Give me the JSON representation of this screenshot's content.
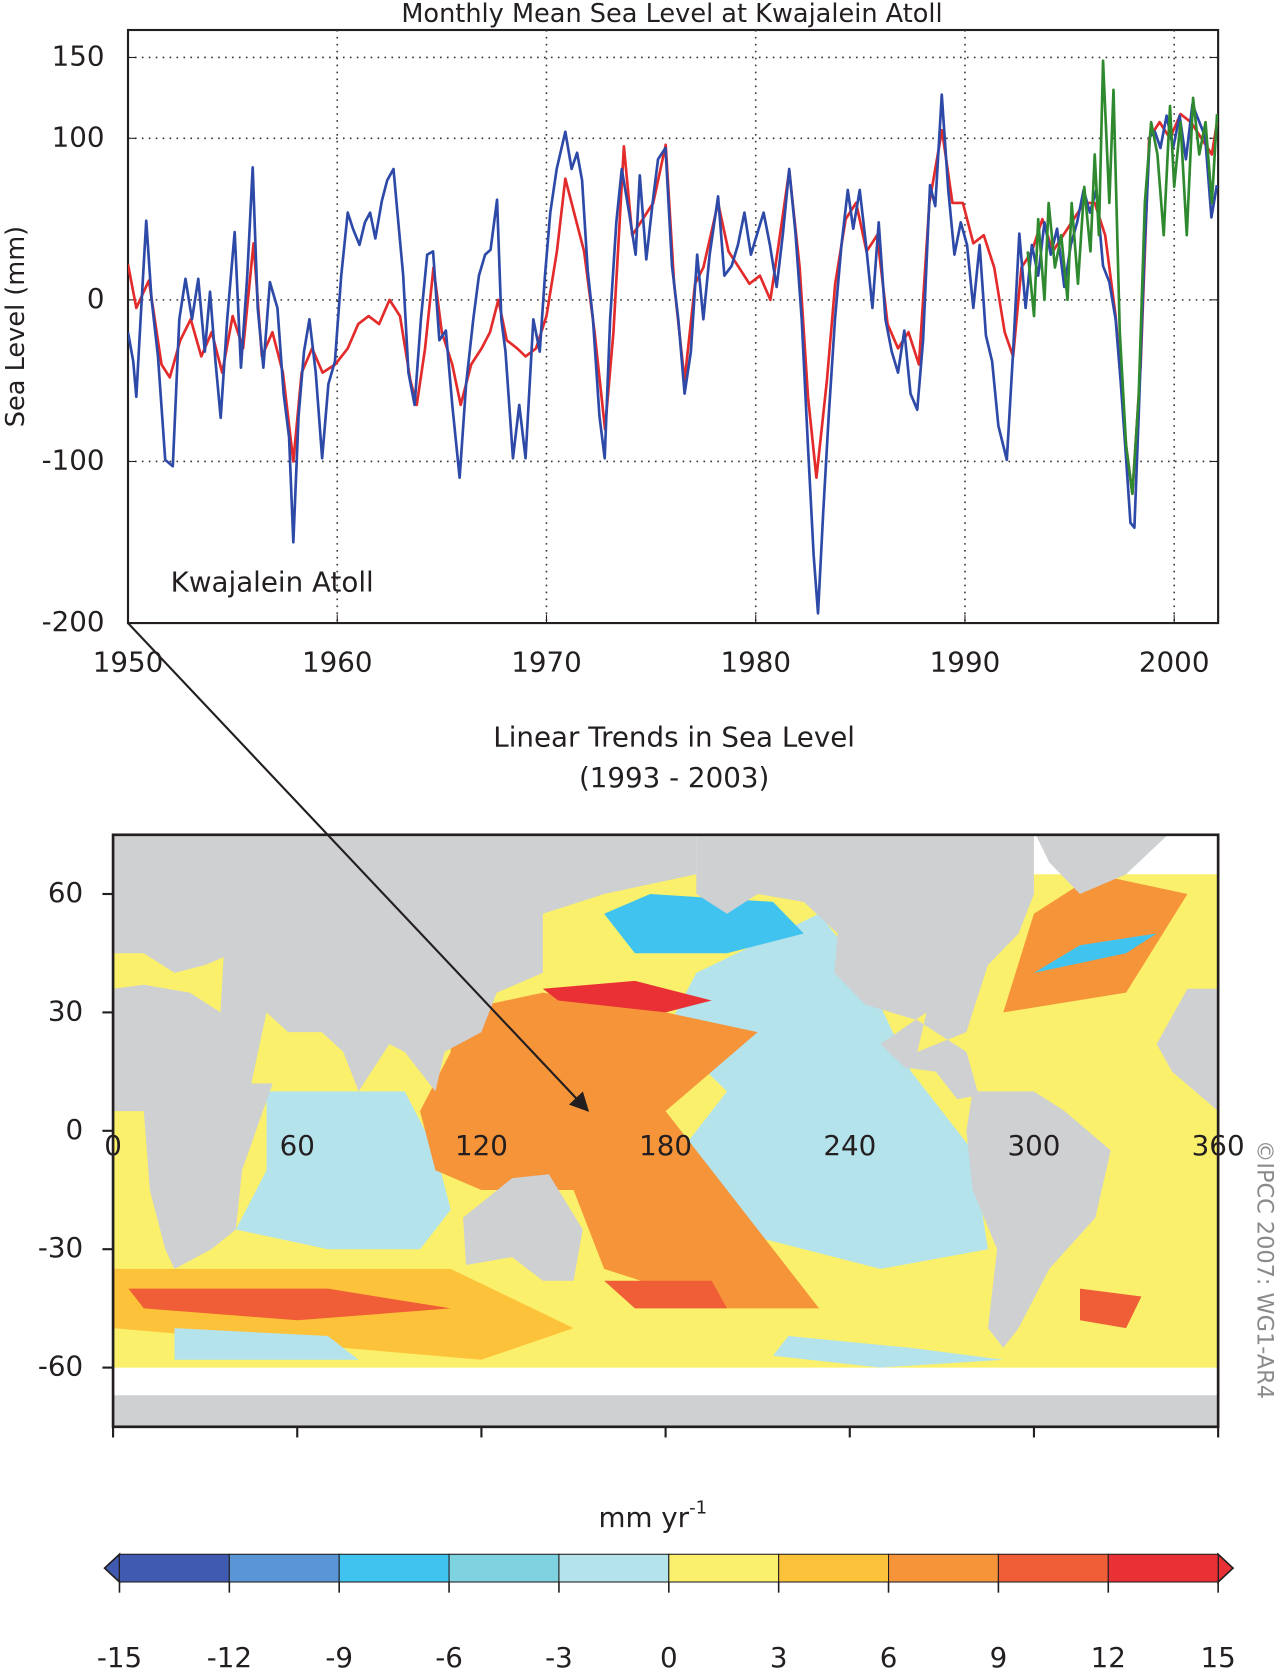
{
  "chart_data": [
    {
      "type": "line",
      "title": "Monthly Mean Sea Level at Kwajalein Atoll",
      "y_label": "Sea Level (mm)",
      "annotation": "Kwajalein Atoll",
      "xlim": [
        1950,
        2002.1
      ],
      "xticks": [
        1950,
        1960,
        1970,
        1980,
        1990,
        2000
      ],
      "ylim": [
        -200,
        167
      ],
      "yticks": [
        -200,
        -100,
        0,
        100,
        150
      ],
      "grid": true,
      "series": [
        {
          "color": "#e32b2b",
          "x": [
            1950.0,
            1950.4,
            1951.0,
            1951.6,
            1952.0,
            1952.5,
            1953.0,
            1953.5,
            1954.0,
            1954.5,
            1955.0,
            1955.5,
            1956.0,
            1956.4,
            1956.9,
            1957.4,
            1957.9,
            1958.3,
            1958.8,
            1959.3,
            1959.9,
            1960.5,
            1961.0,
            1961.5,
            1962.0,
            1962.5,
            1963.0,
            1963.5,
            1963.8,
            1964.2,
            1964.6,
            1965.0,
            1965.5,
            1965.9,
            1966.4,
            1966.9,
            1967.3,
            1967.7,
            1968.1,
            1968.6,
            1969.0,
            1969.5,
            1970.0,
            1970.5,
            1970.9,
            1971.3,
            1971.8,
            1972.3,
            1972.8,
            1973.2,
            1973.7,
            1974.1,
            1974.6,
            1975.1,
            1975.7,
            1976.1,
            1976.6,
            1977.1,
            1977.5,
            1978.2,
            1978.7,
            1979.2,
            1979.7,
            1980.2,
            1980.7,
            1981.1,
            1981.6,
            1982.1,
            1982.5,
            1982.9,
            1983.4,
            1983.8,
            1984.3,
            1984.8,
            1985.3,
            1985.8,
            1986.3,
            1986.8,
            1987.3,
            1987.8,
            1988.3,
            1988.9,
            1989.4,
            1989.9,
            1990.4,
            1990.9,
            1991.4,
            1991.9,
            1992.3,
            1992.7,
            1993.2,
            1993.7,
            1994.2,
            1994.7,
            1995.2,
            1995.7,
            1996.2,
            1996.7,
            1997.2,
            1997.7,
            1998.0,
            1998.4,
            1998.8,
            1999.3,
            1999.8,
            2000.3,
            2000.8,
            2001.3,
            2001.8,
            2002.05
          ],
          "values": [
            22,
            -5,
            12,
            -40,
            -48,
            -25,
            -12,
            -35,
            -20,
            -45,
            -10,
            -30,
            35,
            -35,
            -20,
            -45,
            -100,
            -45,
            -30,
            -45,
            -40,
            -30,
            -15,
            -10,
            -15,
            0,
            -10,
            -50,
            -65,
            -30,
            20,
            -20,
            -40,
            -65,
            -40,
            -30,
            -20,
            0,
            -25,
            -30,
            -35,
            -30,
            -10,
            30,
            75,
            55,
            30,
            -20,
            -80,
            -20,
            95,
            40,
            50,
            60,
            96,
            10,
            -50,
            10,
            20,
            60,
            30,
            20,
            10,
            15,
            0,
            35,
            80,
            20,
            -60,
            -110,
            -50,
            10,
            50,
            60,
            30,
            40,
            -15,
            -30,
            -20,
            -40,
            60,
            105,
            60,
            60,
            35,
            40,
            20,
            -20,
            -35,
            20,
            30,
            50,
            30,
            40,
            50,
            60,
            60,
            40,
            -10,
            -90,
            -120,
            -40,
            100,
            110,
            100,
            115,
            110,
            100,
            90,
            110
          ]
        },
        {
          "color": "#2e4aa8",
          "x": [
            1950.0,
            1950.25,
            1950.4,
            1950.6,
            1950.87,
            1951.12,
            1951.43,
            1951.78,
            1952.14,
            1952.45,
            1952.75,
            1953.06,
            1953.36,
            1953.67,
            1953.92,
            1954.18,
            1954.43,
            1954.74,
            1955.1,
            1955.4,
            1955.7,
            1955.96,
            1956.2,
            1956.47,
            1956.78,
            1957.14,
            1957.44,
            1957.7,
            1957.9,
            1958.15,
            1958.41,
            1958.67,
            1958.97,
            1959.28,
            1959.58,
            1959.89,
            1960.19,
            1960.5,
            1960.75,
            1961.06,
            1961.32,
            1961.57,
            1961.82,
            1962.13,
            1962.39,
            1962.69,
            1962.9,
            1963.15,
            1963.4,
            1963.7,
            1964.0,
            1964.3,
            1964.58,
            1964.88,
            1965.19,
            1965.5,
            1965.85,
            1966.16,
            1966.5,
            1966.77,
            1967.07,
            1967.33,
            1967.64,
            1967.84,
            1968.04,
            1968.4,
            1968.7,
            1969.0,
            1969.37,
            1969.68,
            1969.93,
            1970.18,
            1970.49,
            1970.9,
            1971.2,
            1971.46,
            1971.7,
            1971.97,
            1972.22,
            1972.53,
            1972.78,
            1973.04,
            1973.34,
            1973.6,
            1973.95,
            1974.26,
            1974.46,
            1974.77,
            1975.08,
            1975.33,
            1975.69,
            1976.0,
            1976.3,
            1976.6,
            1976.9,
            1977.2,
            1977.5,
            1977.8,
            1978.2,
            1978.5,
            1978.85,
            1979.15,
            1979.46,
            1979.77,
            1980.07,
            1980.38,
            1980.68,
            1981.0,
            1981.3,
            1981.6,
            1981.9,
            1982.2,
            1982.5,
            1982.77,
            1982.98,
            1983.23,
            1983.49,
            1983.79,
            1984.1,
            1984.4,
            1984.66,
            1984.97,
            1985.27,
            1985.58,
            1985.88,
            1986.2,
            1986.5,
            1986.8,
            1987.1,
            1987.4,
            1987.72,
            1988.0,
            1988.33,
            1988.58,
            1988.89,
            1989.2,
            1989.5,
            1989.8,
            1990.1,
            1990.4,
            1990.7,
            1991.0,
            1991.3,
            1991.6,
            1992.0,
            1992.3,
            1992.6,
            1992.9,
            1993.2,
            1993.5,
            1993.8,
            1994.1,
            1994.4,
            1994.75,
            1995.06,
            1995.36,
            1995.67,
            1995.97,
            1996.28,
            1996.6,
            1996.9,
            1997.2,
            1997.45,
            1997.7,
            1997.91,
            1998.1,
            1998.3,
            1998.57,
            1998.83,
            1999.08,
            1999.34,
            1999.64,
            1999.95,
            2000.26,
            2000.56,
            2000.87,
            2001.17,
            2001.48,
            2001.78,
            2002.04
          ],
          "values": [
            -20,
            -38,
            -60,
            -12,
            49,
            1,
            -35,
            -99,
            -103,
            -12,
            13,
            -12,
            13,
            -32,
            5,
            -38,
            -73,
            -12,
            42,
            -42,
            15,
            82,
            -5,
            -42,
            11,
            -5,
            -58,
            -85,
            -150,
            -72,
            -32,
            -12,
            -45,
            -98,
            -52,
            -38,
            15,
            54,
            44,
            34,
            48,
            54,
            38,
            61,
            74,
            81,
            51,
            15,
            -45,
            -65,
            -12,
            28,
            30,
            -25,
            -19,
            -65,
            -110,
            -52,
            -12,
            15,
            28,
            31,
            62,
            -12,
            -32,
            -98,
            -65,
            -98,
            -12,
            -32,
            15,
            54,
            81,
            104,
            81,
            91,
            74,
            18,
            -12,
            -72,
            -98,
            -12,
            48,
            81,
            54,
            28,
            77,
            25,
            61,
            87,
            94,
            21,
            -12,
            -58,
            -32,
            28,
            -12,
            28,
            64,
            15,
            21,
            34,
            54,
            28,
            41,
            54,
            34,
            8,
            41,
            81,
            41,
            -12,
            -91,
            -158,
            -194,
            -131,
            -72,
            -12,
            34,
            68,
            44,
            68,
            34,
            -5,
            48,
            -12,
            -32,
            -45,
            -19,
            -58,
            -68,
            -25,
            71,
            58,
            127,
            68,
            28,
            48,
            34,
            -5,
            34,
            -22,
            -38,
            -78,
            -99,
            -32,
            41,
            -5,
            34,
            15,
            48,
            28,
            44,
            8,
            34,
            48,
            68,
            54,
            68,
            21,
            11,
            -12,
            -52,
            -98,
            -138,
            -141,
            -72,
            28,
            101,
            104,
            94,
            114,
            94,
            114,
            87,
            121,
            111,
            101,
            51,
            71
          ]
        },
        {
          "color": "#2f8a2f",
          "x": [
            1993.0,
            1993.3,
            1993.5,
            1993.8,
            1994.0,
            1994.3,
            1994.6,
            1994.9,
            1995.1,
            1995.4,
            1995.7,
            1996.0,
            1996.2,
            1996.4,
            1996.6,
            1996.9,
            1997.1,
            1997.4,
            1997.7,
            1998.0,
            1998.3,
            1998.6,
            1998.9,
            1999.2,
            1999.5,
            1999.8,
            2000.0,
            2000.3,
            2000.6,
            2000.9,
            2001.2,
            2001.5,
            2001.8,
            2002.05
          ],
          "values": [
            30,
            -10,
            50,
            0,
            60,
            20,
            40,
            0,
            60,
            10,
            70,
            30,
            90,
            40,
            148,
            60,
            130,
            -20,
            -90,
            -120,
            -60,
            60,
            110,
            90,
            40,
            120,
            70,
            110,
            40,
            125,
            90,
            110,
            60,
            115
          ]
        }
      ]
    },
    {
      "type": "map",
      "title": "Linear Trends in Sea Level",
      "subtitle": "(1993 - 2003)",
      "xlim": [
        0,
        360
      ],
      "xticks": [
        0,
        60,
        120,
        180,
        240,
        300,
        360
      ],
      "ylim": [
        -75,
        75
      ],
      "yticks": [
        -60,
        -30,
        0,
        30,
        60
      ],
      "colorbar": {
        "label": "mm yr",
        "label_superscript": "-1",
        "ticks": [
          -15,
          -12,
          -9,
          -6,
          -3,
          0,
          3,
          6,
          9,
          12,
          15
        ],
        "colors": [
          "#3f5ab0",
          "#5a95d6",
          "#40c3ef",
          "#7fd2e0",
          "#b4e3ec",
          "#faf06c",
          "#fcc33a",
          "#f69439",
          "#ef5e36",
          "#e93035"
        ]
      }
    }
  ],
  "credit": "©IPCC 2007: WG1-AR4"
}
